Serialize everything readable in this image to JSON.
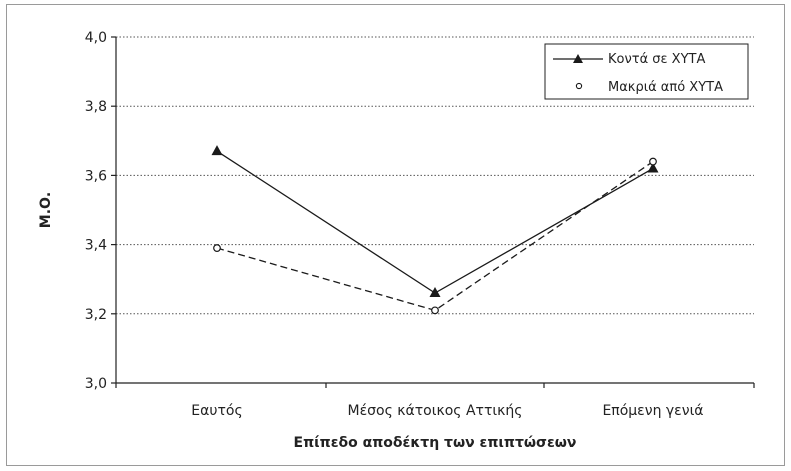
{
  "chart_data": {
    "type": "line",
    "title": "",
    "xlabel": "Επίπεδο αποδέκτη των επιπτώσεων",
    "ylabel": "Μ.Ο.",
    "categories": [
      "Εαυτός",
      "Μέσος κάτοικος Αττικής",
      "Επόμενη γενιά"
    ],
    "ylim": [
      3.0,
      4.0
    ],
    "yticks": [
      "3,0",
      "3,2",
      "3,4",
      "3,6",
      "3,8",
      "4,0"
    ],
    "ytick_values": [
      3.0,
      3.2,
      3.4,
      3.6,
      3.8,
      4.0
    ],
    "grid": true,
    "legend_position": "top-right",
    "series": [
      {
        "name": "Κοντά σε ΧΥΤΑ",
        "values": [
          3.67,
          3.26,
          3.62
        ],
        "marker": "filled-triangle",
        "line": "solid",
        "color": "#1a1a1a"
      },
      {
        "name": "Μακριά από ΧΥΤΑ",
        "values": [
          3.39,
          3.21,
          3.64
        ],
        "marker": "open-circle",
        "line": "dashed",
        "color": "#1a1a1a"
      }
    ]
  }
}
